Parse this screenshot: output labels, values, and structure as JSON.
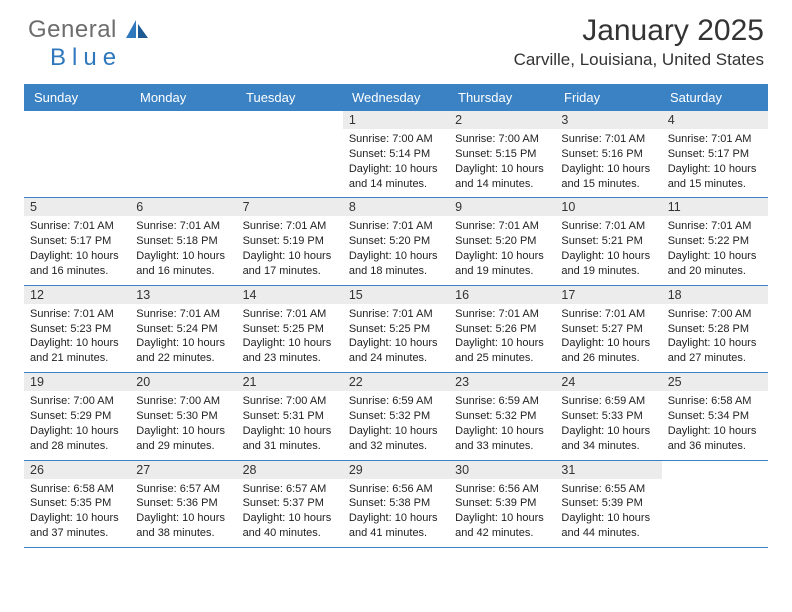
{
  "brand": {
    "name1": "General",
    "name2": "Blue"
  },
  "title": "January 2025",
  "subtitle": "Carville, Louisiana, United States",
  "colors": {
    "header_bg": "#3a82c4",
    "header_text": "#ffffff",
    "daynum_bg": "#ececec",
    "rule": "#3a82c4",
    "logo_gray": "#6d6d6d",
    "logo_blue": "#2f78bd",
    "body_text": "#222222"
  },
  "day_headers": [
    "Sunday",
    "Monday",
    "Tuesday",
    "Wednesday",
    "Thursday",
    "Friday",
    "Saturday"
  ],
  "weeks": [
    [
      {
        "blank": true
      },
      {
        "blank": true
      },
      {
        "blank": true
      },
      {
        "num": "1",
        "sunrise": "Sunrise: 7:00 AM",
        "sunset": "Sunset: 5:14 PM",
        "daylight": "Daylight: 10 hours and 14 minutes."
      },
      {
        "num": "2",
        "sunrise": "Sunrise: 7:00 AM",
        "sunset": "Sunset: 5:15 PM",
        "daylight": "Daylight: 10 hours and 14 minutes."
      },
      {
        "num": "3",
        "sunrise": "Sunrise: 7:01 AM",
        "sunset": "Sunset: 5:16 PM",
        "daylight": "Daylight: 10 hours and 15 minutes."
      },
      {
        "num": "4",
        "sunrise": "Sunrise: 7:01 AM",
        "sunset": "Sunset: 5:17 PM",
        "daylight": "Daylight: 10 hours and 15 minutes."
      }
    ],
    [
      {
        "num": "5",
        "sunrise": "Sunrise: 7:01 AM",
        "sunset": "Sunset: 5:17 PM",
        "daylight": "Daylight: 10 hours and 16 minutes."
      },
      {
        "num": "6",
        "sunrise": "Sunrise: 7:01 AM",
        "sunset": "Sunset: 5:18 PM",
        "daylight": "Daylight: 10 hours and 16 minutes."
      },
      {
        "num": "7",
        "sunrise": "Sunrise: 7:01 AM",
        "sunset": "Sunset: 5:19 PM",
        "daylight": "Daylight: 10 hours and 17 minutes."
      },
      {
        "num": "8",
        "sunrise": "Sunrise: 7:01 AM",
        "sunset": "Sunset: 5:20 PM",
        "daylight": "Daylight: 10 hours and 18 minutes."
      },
      {
        "num": "9",
        "sunrise": "Sunrise: 7:01 AM",
        "sunset": "Sunset: 5:20 PM",
        "daylight": "Daylight: 10 hours and 19 minutes."
      },
      {
        "num": "10",
        "sunrise": "Sunrise: 7:01 AM",
        "sunset": "Sunset: 5:21 PM",
        "daylight": "Daylight: 10 hours and 19 minutes."
      },
      {
        "num": "11",
        "sunrise": "Sunrise: 7:01 AM",
        "sunset": "Sunset: 5:22 PM",
        "daylight": "Daylight: 10 hours and 20 minutes."
      }
    ],
    [
      {
        "num": "12",
        "sunrise": "Sunrise: 7:01 AM",
        "sunset": "Sunset: 5:23 PM",
        "daylight": "Daylight: 10 hours and 21 minutes."
      },
      {
        "num": "13",
        "sunrise": "Sunrise: 7:01 AM",
        "sunset": "Sunset: 5:24 PM",
        "daylight": "Daylight: 10 hours and 22 minutes."
      },
      {
        "num": "14",
        "sunrise": "Sunrise: 7:01 AM",
        "sunset": "Sunset: 5:25 PM",
        "daylight": "Daylight: 10 hours and 23 minutes."
      },
      {
        "num": "15",
        "sunrise": "Sunrise: 7:01 AM",
        "sunset": "Sunset: 5:25 PM",
        "daylight": "Daylight: 10 hours and 24 minutes."
      },
      {
        "num": "16",
        "sunrise": "Sunrise: 7:01 AM",
        "sunset": "Sunset: 5:26 PM",
        "daylight": "Daylight: 10 hours and 25 minutes."
      },
      {
        "num": "17",
        "sunrise": "Sunrise: 7:01 AM",
        "sunset": "Sunset: 5:27 PM",
        "daylight": "Daylight: 10 hours and 26 minutes."
      },
      {
        "num": "18",
        "sunrise": "Sunrise: 7:00 AM",
        "sunset": "Sunset: 5:28 PM",
        "daylight": "Daylight: 10 hours and 27 minutes."
      }
    ],
    [
      {
        "num": "19",
        "sunrise": "Sunrise: 7:00 AM",
        "sunset": "Sunset: 5:29 PM",
        "daylight": "Daylight: 10 hours and 28 minutes."
      },
      {
        "num": "20",
        "sunrise": "Sunrise: 7:00 AM",
        "sunset": "Sunset: 5:30 PM",
        "daylight": "Daylight: 10 hours and 29 minutes."
      },
      {
        "num": "21",
        "sunrise": "Sunrise: 7:00 AM",
        "sunset": "Sunset: 5:31 PM",
        "daylight": "Daylight: 10 hours and 31 minutes."
      },
      {
        "num": "22",
        "sunrise": "Sunrise: 6:59 AM",
        "sunset": "Sunset: 5:32 PM",
        "daylight": "Daylight: 10 hours and 32 minutes."
      },
      {
        "num": "23",
        "sunrise": "Sunrise: 6:59 AM",
        "sunset": "Sunset: 5:32 PM",
        "daylight": "Daylight: 10 hours and 33 minutes."
      },
      {
        "num": "24",
        "sunrise": "Sunrise: 6:59 AM",
        "sunset": "Sunset: 5:33 PM",
        "daylight": "Daylight: 10 hours and 34 minutes."
      },
      {
        "num": "25",
        "sunrise": "Sunrise: 6:58 AM",
        "sunset": "Sunset: 5:34 PM",
        "daylight": "Daylight: 10 hours and 36 minutes."
      }
    ],
    [
      {
        "num": "26",
        "sunrise": "Sunrise: 6:58 AM",
        "sunset": "Sunset: 5:35 PM",
        "daylight": "Daylight: 10 hours and 37 minutes."
      },
      {
        "num": "27",
        "sunrise": "Sunrise: 6:57 AM",
        "sunset": "Sunset: 5:36 PM",
        "daylight": "Daylight: 10 hours and 38 minutes."
      },
      {
        "num": "28",
        "sunrise": "Sunrise: 6:57 AM",
        "sunset": "Sunset: 5:37 PM",
        "daylight": "Daylight: 10 hours and 40 minutes."
      },
      {
        "num": "29",
        "sunrise": "Sunrise: 6:56 AM",
        "sunset": "Sunset: 5:38 PM",
        "daylight": "Daylight: 10 hours and 41 minutes."
      },
      {
        "num": "30",
        "sunrise": "Sunrise: 6:56 AM",
        "sunset": "Sunset: 5:39 PM",
        "daylight": "Daylight: 10 hours and 42 minutes."
      },
      {
        "num": "31",
        "sunrise": "Sunrise: 6:55 AM",
        "sunset": "Sunset: 5:39 PM",
        "daylight": "Daylight: 10 hours and 44 minutes."
      },
      {
        "blank": true
      }
    ]
  ]
}
